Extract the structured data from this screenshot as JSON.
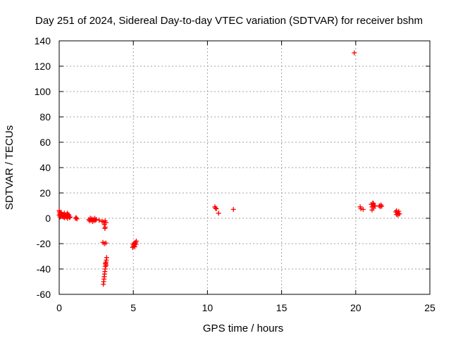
{
  "chart_data": {
    "type": "scatter",
    "title": "Day 251 of 2024, Sidereal Day-to-day VTEC variation (SDTVAR) for receiver bshm",
    "xlabel": "GPS time / hours",
    "ylabel": "SDTVAR / TECUs",
    "xlim": [
      0,
      25
    ],
    "ylim": [
      -60,
      140
    ],
    "xticks": [
      0,
      5,
      10,
      15,
      20,
      25
    ],
    "yticks": [
      -60,
      -40,
      -20,
      0,
      20,
      40,
      60,
      80,
      100,
      120,
      140
    ],
    "grid": true,
    "marker": "+",
    "marker_color": "#ff0000",
    "series": [
      {
        "name": "SDTVAR",
        "points": [
          [
            0.0,
            6.0
          ],
          [
            0.03,
            5.0
          ],
          [
            0.05,
            4.0
          ],
          [
            0.07,
            3.0
          ],
          [
            0.1,
            2.0
          ],
          [
            0.12,
            3.5
          ],
          [
            0.15,
            4.5
          ],
          [
            0.18,
            2.5
          ],
          [
            0.2,
            3.0
          ],
          [
            0.22,
            1.5
          ],
          [
            0.25,
            2.0
          ],
          [
            0.28,
            3.0
          ],
          [
            0.3,
            1.0
          ],
          [
            0.33,
            2.0
          ],
          [
            0.36,
            0.5
          ],
          [
            0.4,
            2.5
          ],
          [
            0.43,
            1.5
          ],
          [
            0.46,
            3.0
          ],
          [
            0.5,
            1.0
          ],
          [
            0.53,
            2.0
          ],
          [
            0.56,
            0.0
          ],
          [
            0.6,
            3.0
          ],
          [
            0.63,
            1.5
          ],
          [
            0.66,
            2.5
          ],
          [
            0.7,
            0.5
          ],
          [
            0.73,
            1.0
          ],
          [
            0.0,
            2.5
          ],
          [
            0.05,
            1.0
          ],
          [
            0.35,
            4.0
          ],
          [
            0.55,
            4.0
          ],
          [
            1.1,
            0.0
          ],
          [
            1.2,
            -0.5
          ],
          [
            1.15,
            0.5
          ],
          [
            2.0,
            -1.0
          ],
          [
            2.05,
            -2.0
          ],
          [
            2.1,
            0.0
          ],
          [
            2.15,
            -1.5
          ],
          [
            2.2,
            -0.5
          ],
          [
            2.25,
            -2.5
          ],
          [
            2.3,
            -1.0
          ],
          [
            2.35,
            -2.0
          ],
          [
            2.4,
            0.0
          ],
          [
            2.45,
            -1.5
          ],
          [
            2.5,
            -1.0
          ],
          [
            2.7,
            -1.5
          ],
          [
            2.9,
            -2.5
          ],
          [
            3.0,
            -3.0
          ],
          [
            3.1,
            -2.0
          ],
          [
            3.15,
            -3.5
          ],
          [
            3.05,
            -5.0
          ],
          [
            3.1,
            -7.0
          ],
          [
            3.08,
            -8.0
          ],
          [
            2.95,
            -19.0
          ],
          [
            3.05,
            -20.0
          ],
          [
            3.15,
            -19.5
          ],
          [
            2.98,
            -52.0
          ],
          [
            3.0,
            -50.0
          ],
          [
            3.02,
            -48.0
          ],
          [
            3.04,
            -46.0
          ],
          [
            3.06,
            -44.0
          ],
          [
            3.08,
            -42.0
          ],
          [
            3.1,
            -40.0
          ],
          [
            3.12,
            -38.0
          ],
          [
            3.14,
            -36.0
          ],
          [
            3.16,
            -34.5
          ],
          [
            3.18,
            -33.0
          ],
          [
            3.2,
            -31.0
          ],
          [
            3.12,
            -35.5
          ],
          [
            3.16,
            -37.0
          ],
          [
            4.95,
            -23.0
          ],
          [
            5.0,
            -22.0
          ],
          [
            5.05,
            -21.0
          ],
          [
            5.1,
            -20.0
          ],
          [
            5.15,
            -19.0
          ],
          [
            5.2,
            -18.0
          ],
          [
            5.0,
            -20.5
          ],
          [
            5.1,
            -22.5
          ],
          [
            5.18,
            -20.5
          ],
          [
            5.05,
            -19.5
          ],
          [
            10.5,
            9.0
          ],
          [
            10.55,
            8.0
          ],
          [
            10.6,
            7.5
          ],
          [
            10.75,
            4.0
          ],
          [
            11.75,
            7.0
          ],
          [
            19.9,
            130.5
          ],
          [
            20.3,
            9.0
          ],
          [
            20.35,
            7.5
          ],
          [
            20.5,
            7.0
          ],
          [
            21.05,
            11.0
          ],
          [
            21.1,
            9.0
          ],
          [
            21.15,
            12.0
          ],
          [
            21.2,
            8.0
          ],
          [
            21.25,
            10.0
          ],
          [
            21.1,
            6.5
          ],
          [
            21.2,
            11.5
          ],
          [
            21.3,
            9.5
          ],
          [
            21.6,
            10.0
          ],
          [
            21.65,
            9.0
          ],
          [
            21.7,
            10.5
          ],
          [
            21.75,
            9.5
          ],
          [
            22.7,
            5.0
          ],
          [
            22.75,
            3.0
          ],
          [
            22.8,
            4.5
          ],
          [
            22.85,
            2.5
          ],
          [
            22.9,
            5.5
          ],
          [
            22.95,
            3.5
          ],
          [
            22.75,
            6.0
          ],
          [
            22.85,
            4.0
          ]
        ]
      }
    ]
  }
}
